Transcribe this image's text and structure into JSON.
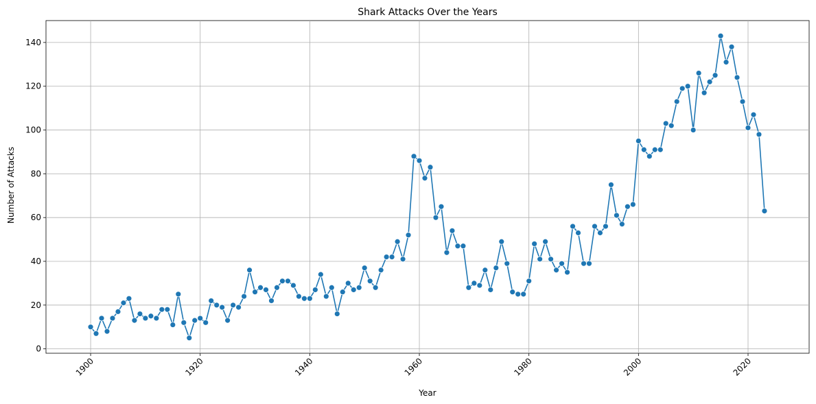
{
  "chart_data": {
    "type": "line",
    "title": "Shark Attacks Over the Years",
    "xlabel": "Year",
    "ylabel": "Number of Attacks",
    "xlim": [
      1891.85,
      2031.15
    ],
    "ylim": [
      -2,
      150
    ],
    "x_ticks": [
      1900,
      1920,
      1940,
      1960,
      1980,
      2000,
      2020
    ],
    "y_ticks": [
      0,
      20,
      40,
      60,
      80,
      100,
      120,
      140
    ],
    "grid": true,
    "marker": "circle",
    "color": "#1f77b4",
    "series": [
      {
        "x": [
          1900,
          1901,
          1902,
          1903,
          1904,
          1905,
          1906,
          1907,
          1908,
          1909,
          1910,
          1911,
          1912,
          1913,
          1914,
          1915,
          1916,
          1917,
          1918,
          1919,
          1920,
          1921,
          1922,
          1923,
          1924,
          1925,
          1926,
          1927,
          1928,
          1929,
          1930,
          1931,
          1932,
          1933,
          1934,
          1935,
          1936,
          1937,
          1938,
          1939,
          1940,
          1941,
          1942,
          1943,
          1944,
          1945,
          1946,
          1947,
          1948,
          1949,
          1950,
          1951,
          1952,
          1953,
          1954,
          1955,
          1956,
          1957,
          1958,
          1959,
          1960,
          1961,
          1962,
          1963,
          1964,
          1965,
          1966,
          1967,
          1968,
          1969,
          1970,
          1971,
          1972,
          1973,
          1974,
          1975,
          1976,
          1977,
          1978,
          1979,
          1980,
          1981,
          1982,
          1983,
          1984,
          1985,
          1986,
          1987,
          1988,
          1989,
          1990,
          1991,
          1992,
          1993,
          1994,
          1995,
          1996,
          1997,
          1998,
          1999,
          2000,
          2001,
          2002,
          2003,
          2004,
          2005,
          2006,
          2007,
          2008,
          2009,
          2010,
          2011,
          2012,
          2013,
          2014,
          2015,
          2016,
          2017,
          2018,
          2019,
          2020,
          2021,
          2022,
          2023
        ],
        "values": [
          10,
          7,
          14,
          8,
          14,
          17,
          21,
          23,
          13,
          16,
          14,
          15,
          14,
          18,
          18,
          11,
          25,
          12,
          5,
          13,
          14,
          12,
          22,
          20,
          19,
          13,
          20,
          19,
          24,
          36,
          26,
          28,
          27,
          22,
          28,
          31,
          31,
          29,
          24,
          23,
          23,
          27,
          34,
          24,
          28,
          16,
          26,
          30,
          27,
          28,
          37,
          31,
          28,
          36,
          42,
          42,
          49,
          41,
          52,
          88,
          86,
          78,
          83,
          60,
          65,
          44,
          54,
          47,
          47,
          28,
          30,
          29,
          36,
          27,
          37,
          49,
          39,
          26,
          25,
          25,
          31,
          48,
          41,
          49,
          41,
          36,
          39,
          35,
          56,
          53,
          39,
          39,
          56,
          53,
          56,
          75,
          61,
          57,
          65,
          66,
          95,
          91,
          88,
          91,
          91,
          103,
          102,
          113,
          119,
          120,
          100,
          126,
          117,
          122,
          125,
          143,
          131,
          138,
          124,
          113,
          101,
          107,
          98,
          63
        ]
      }
    ]
  }
}
